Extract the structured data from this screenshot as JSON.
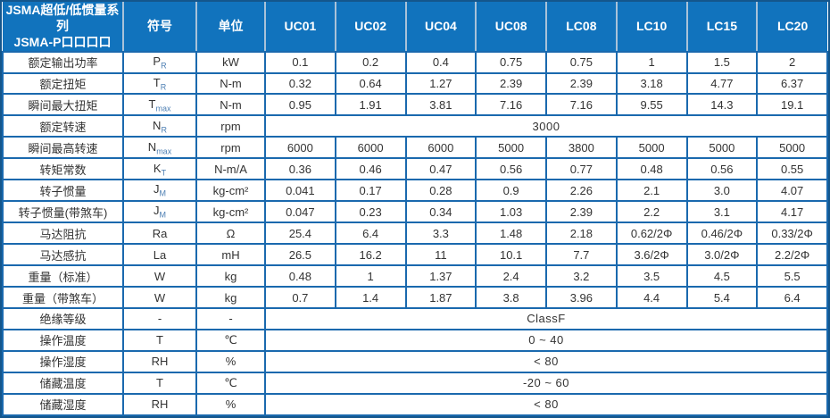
{
  "colors": {
    "header_bg": "#1173bd",
    "header_divider": "#a9c2d9",
    "grid_border": "#1a69ae",
    "outer_border": "#14568c",
    "body_text": "#333333",
    "subscript": "#4d7fb3"
  },
  "table": {
    "title_line1": "JSMA超低/低惯量系列",
    "title_line2": "JSMA-P口口口口",
    "col_headers": [
      "符号",
      "单位",
      "UC01",
      "UC02",
      "UC04",
      "UC08",
      "LC08",
      "LC10",
      "LC15",
      "LC20"
    ],
    "rows": [
      {
        "label": "额定输出功率",
        "symbol": {
          "main": "P",
          "sub": "R"
        },
        "unit": "kW",
        "values": [
          "0.1",
          "0.2",
          "0.4",
          "0.75",
          "0.75",
          "1",
          "1.5",
          "2"
        ]
      },
      {
        "label": "额定扭矩",
        "symbol": {
          "main": "T",
          "sub": "R"
        },
        "unit": "N-m",
        "values": [
          "0.32",
          "0.64",
          "1.27",
          "2.39",
          "2.39",
          "3.18",
          "4.77",
          "6.37"
        ]
      },
      {
        "label": "瞬间最大扭矩",
        "symbol": {
          "main": "T",
          "sub": "max"
        },
        "unit": "N-m",
        "values": [
          "0.95",
          "1.91",
          "3.81",
          "7.16",
          "7.16",
          "9.55",
          "14.3",
          "19.1"
        ]
      },
      {
        "label": "额定转速",
        "symbol": {
          "main": "N",
          "sub": "R"
        },
        "unit": "rpm",
        "merged": "3000"
      },
      {
        "label": "瞬间最高转速",
        "symbol": {
          "main": "N",
          "sub": "max"
        },
        "unit": "rpm",
        "values": [
          "6000",
          "6000",
          "6000",
          "5000",
          "3800",
          "5000",
          "5000",
          "5000"
        ]
      },
      {
        "label": "转矩常数",
        "symbol": {
          "main": "K",
          "sub": "T"
        },
        "unit": "N-m/A",
        "values": [
          "0.36",
          "0.46",
          "0.47",
          "0.56",
          "0.77",
          "0.48",
          "0.56",
          "0.55"
        ]
      },
      {
        "label": "转子惯量",
        "symbol": {
          "main": "J",
          "sub": "M"
        },
        "unit": "kg-cm²",
        "values": [
          "0.041",
          "0.17",
          "0.28",
          "0.9",
          "2.26",
          "2.1",
          "3.0",
          "4.07"
        ]
      },
      {
        "label": "转子惯量(带煞车)",
        "symbol": {
          "main": "J",
          "sub": "M"
        },
        "unit": "kg-cm²",
        "values": [
          "0.047",
          "0.23",
          "0.34",
          "1.03",
          "2.39",
          "2.2",
          "3.1",
          "4.17"
        ]
      },
      {
        "label": "马达阻抗",
        "symbol": {
          "main": "Ra"
        },
        "unit": "Ω",
        "values": [
          "25.4",
          "6.4",
          "3.3",
          "1.48",
          "2.18",
          "0.62/2Φ",
          "0.46/2Φ",
          "0.33/2Φ"
        ]
      },
      {
        "label": "马达感抗",
        "symbol": {
          "main": "La"
        },
        "unit": "mH",
        "values": [
          "26.5",
          "16.2",
          "11",
          "10.1",
          "7.7",
          "3.6/2Φ",
          "3.0/2Φ",
          "2.2/2Φ"
        ]
      },
      {
        "label": "重量（标准）",
        "symbol": {
          "main": "W"
        },
        "unit": "kg",
        "values": [
          "0.48",
          "1",
          "1.37",
          "2.4",
          "3.2",
          "3.5",
          "4.5",
          "5.5"
        ]
      },
      {
        "label": "重量（带煞车）",
        "symbol": {
          "main": "W"
        },
        "unit": "kg",
        "values": [
          "0.7",
          "1.4",
          "1.87",
          "3.8",
          "3.96",
          "4.4",
          "5.4",
          "6.4"
        ]
      },
      {
        "label": "绝缘等级",
        "symbol": {
          "main": "-"
        },
        "unit": "-",
        "merged": "ClassF"
      },
      {
        "label": "操作温度",
        "symbol": {
          "main": "T"
        },
        "unit": "℃",
        "merged": "0 ~ 40"
      },
      {
        "label": "操作湿度",
        "symbol": {
          "main": "RH"
        },
        "unit": "%",
        "merged": "< 80"
      },
      {
        "label": "储藏温度",
        "symbol": {
          "main": "T"
        },
        "unit": "℃",
        "merged": "-20 ~ 60"
      },
      {
        "label": "储藏湿度",
        "symbol": {
          "main": "RH"
        },
        "unit": "%",
        "merged": "< 80"
      }
    ]
  }
}
